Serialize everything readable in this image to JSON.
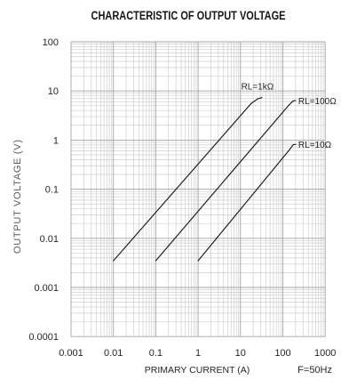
{
  "chart_data": {
    "type": "line",
    "title": "CHARACTERISTIC OF OUTPUT VOLTAGE",
    "xlabel": "PRIMARY CURRENT (A)",
    "ylabel": "OUTPUT VOLTAGE (V)",
    "xscale": "log",
    "yscale": "log",
    "xlim": [
      0.001,
      1000
    ],
    "ylim": [
      0.0001,
      100
    ],
    "xticks": [
      "0.001",
      "0.01",
      "0.1",
      "1",
      "10",
      "100",
      "1000"
    ],
    "yticks": [
      "100",
      "10",
      "1",
      "0.1",
      "0.01",
      "0.001",
      "0.0001"
    ],
    "grid": true,
    "series": [
      {
        "name": "RL=1kΩ",
        "x": [
          0.01,
          18,
          26,
          32
        ],
        "y": [
          0.0035,
          5.6,
          7.0,
          7.3
        ]
      },
      {
        "name": "RL=100Ω",
        "x": [
          0.1,
          140,
          175,
          200
        ],
        "y": [
          0.0035,
          5.2,
          6.3,
          6.4
        ]
      },
      {
        "name": "RL=10Ω",
        "x": [
          1,
          140,
          175,
          200
        ],
        "y": [
          0.0035,
          0.62,
          0.8,
          0.82
        ]
      }
    ],
    "annotation": "F=50Hz",
    "colors": {
      "line": "#1a1a1a",
      "grid_major": "#a3a3a3",
      "grid_minor": "#cfcfcf",
      "text": "#262626"
    }
  }
}
